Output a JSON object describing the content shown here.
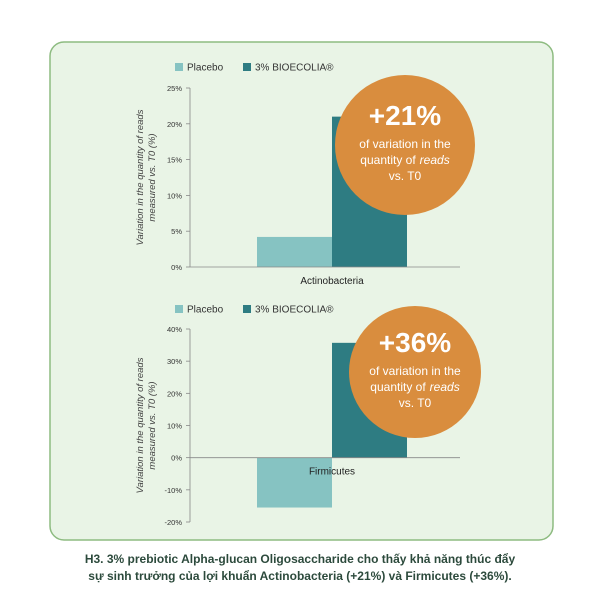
{
  "chart_data": [
    {
      "type": "bar",
      "categories": [
        "Actinobacteria"
      ],
      "series": [
        {
          "name": "Placebo",
          "color": "#86c3c2",
          "values": [
            4.2
          ]
        },
        {
          "name": "3% BIOECOLIA®",
          "color": "#2e7c82",
          "values": [
            21
          ]
        }
      ],
      "y_label": [
        "Variation in the quantity of reads",
        "measured vs. T0 (%)"
      ],
      "ylim": [
        0,
        25
      ],
      "yticks": [
        {
          "value": 0,
          "label": "0%"
        },
        {
          "value": 5,
          "label": "5%"
        },
        {
          "value": 10,
          "label": "10%"
        },
        {
          "value": 15,
          "label": "15%"
        },
        {
          "value": 20,
          "label": "20%"
        },
        {
          "value": 25,
          "label": "25%"
        }
      ],
      "grid": false,
      "annotation": {
        "headline": "+21%",
        "line1": "of variation in the",
        "line2": "quantity of",
        "emphasis": "reads",
        "line3": "vs. T0",
        "color": "#d98d3e"
      }
    },
    {
      "type": "bar",
      "categories": [
        "Firmicutes"
      ],
      "series": [
        {
          "name": "Placebo",
          "color": "#86c3c2",
          "values": [
            -15.5
          ]
        },
        {
          "name": "3% BIOECOLIA®",
          "color": "#2e7c82",
          "values": [
            35.7
          ]
        }
      ],
      "y_label": [
        "Variation in the quantity of reads",
        "measured vs. T0 (%)"
      ],
      "ylim": [
        -20,
        40
      ],
      "yticks": [
        {
          "value": -20,
          "label": "-20%"
        },
        {
          "value": -10,
          "label": "-10%"
        },
        {
          "value": 0,
          "label": "0%"
        },
        {
          "value": 10,
          "label": "10%"
        },
        {
          "value": 20,
          "label": "20%"
        },
        {
          "value": 30,
          "label": "30%"
        },
        {
          "value": 40,
          "label": "40%"
        }
      ],
      "grid": false,
      "annotation": {
        "headline": "+36%",
        "line1": "of variation in the",
        "line2": "quantity of",
        "emphasis": "reads",
        "line3": "vs. T0",
        "color": "#d98d3e"
      }
    }
  ],
  "caption": [
    "H3. 3% prebiotic Alpha-glucan Oligosaccharide cho thấy khả năng thúc đẩy",
    "sự sinh trưởng của lợi khuẩn Actinobacteria (+21%) và Firmicutes (+36%)."
  ]
}
